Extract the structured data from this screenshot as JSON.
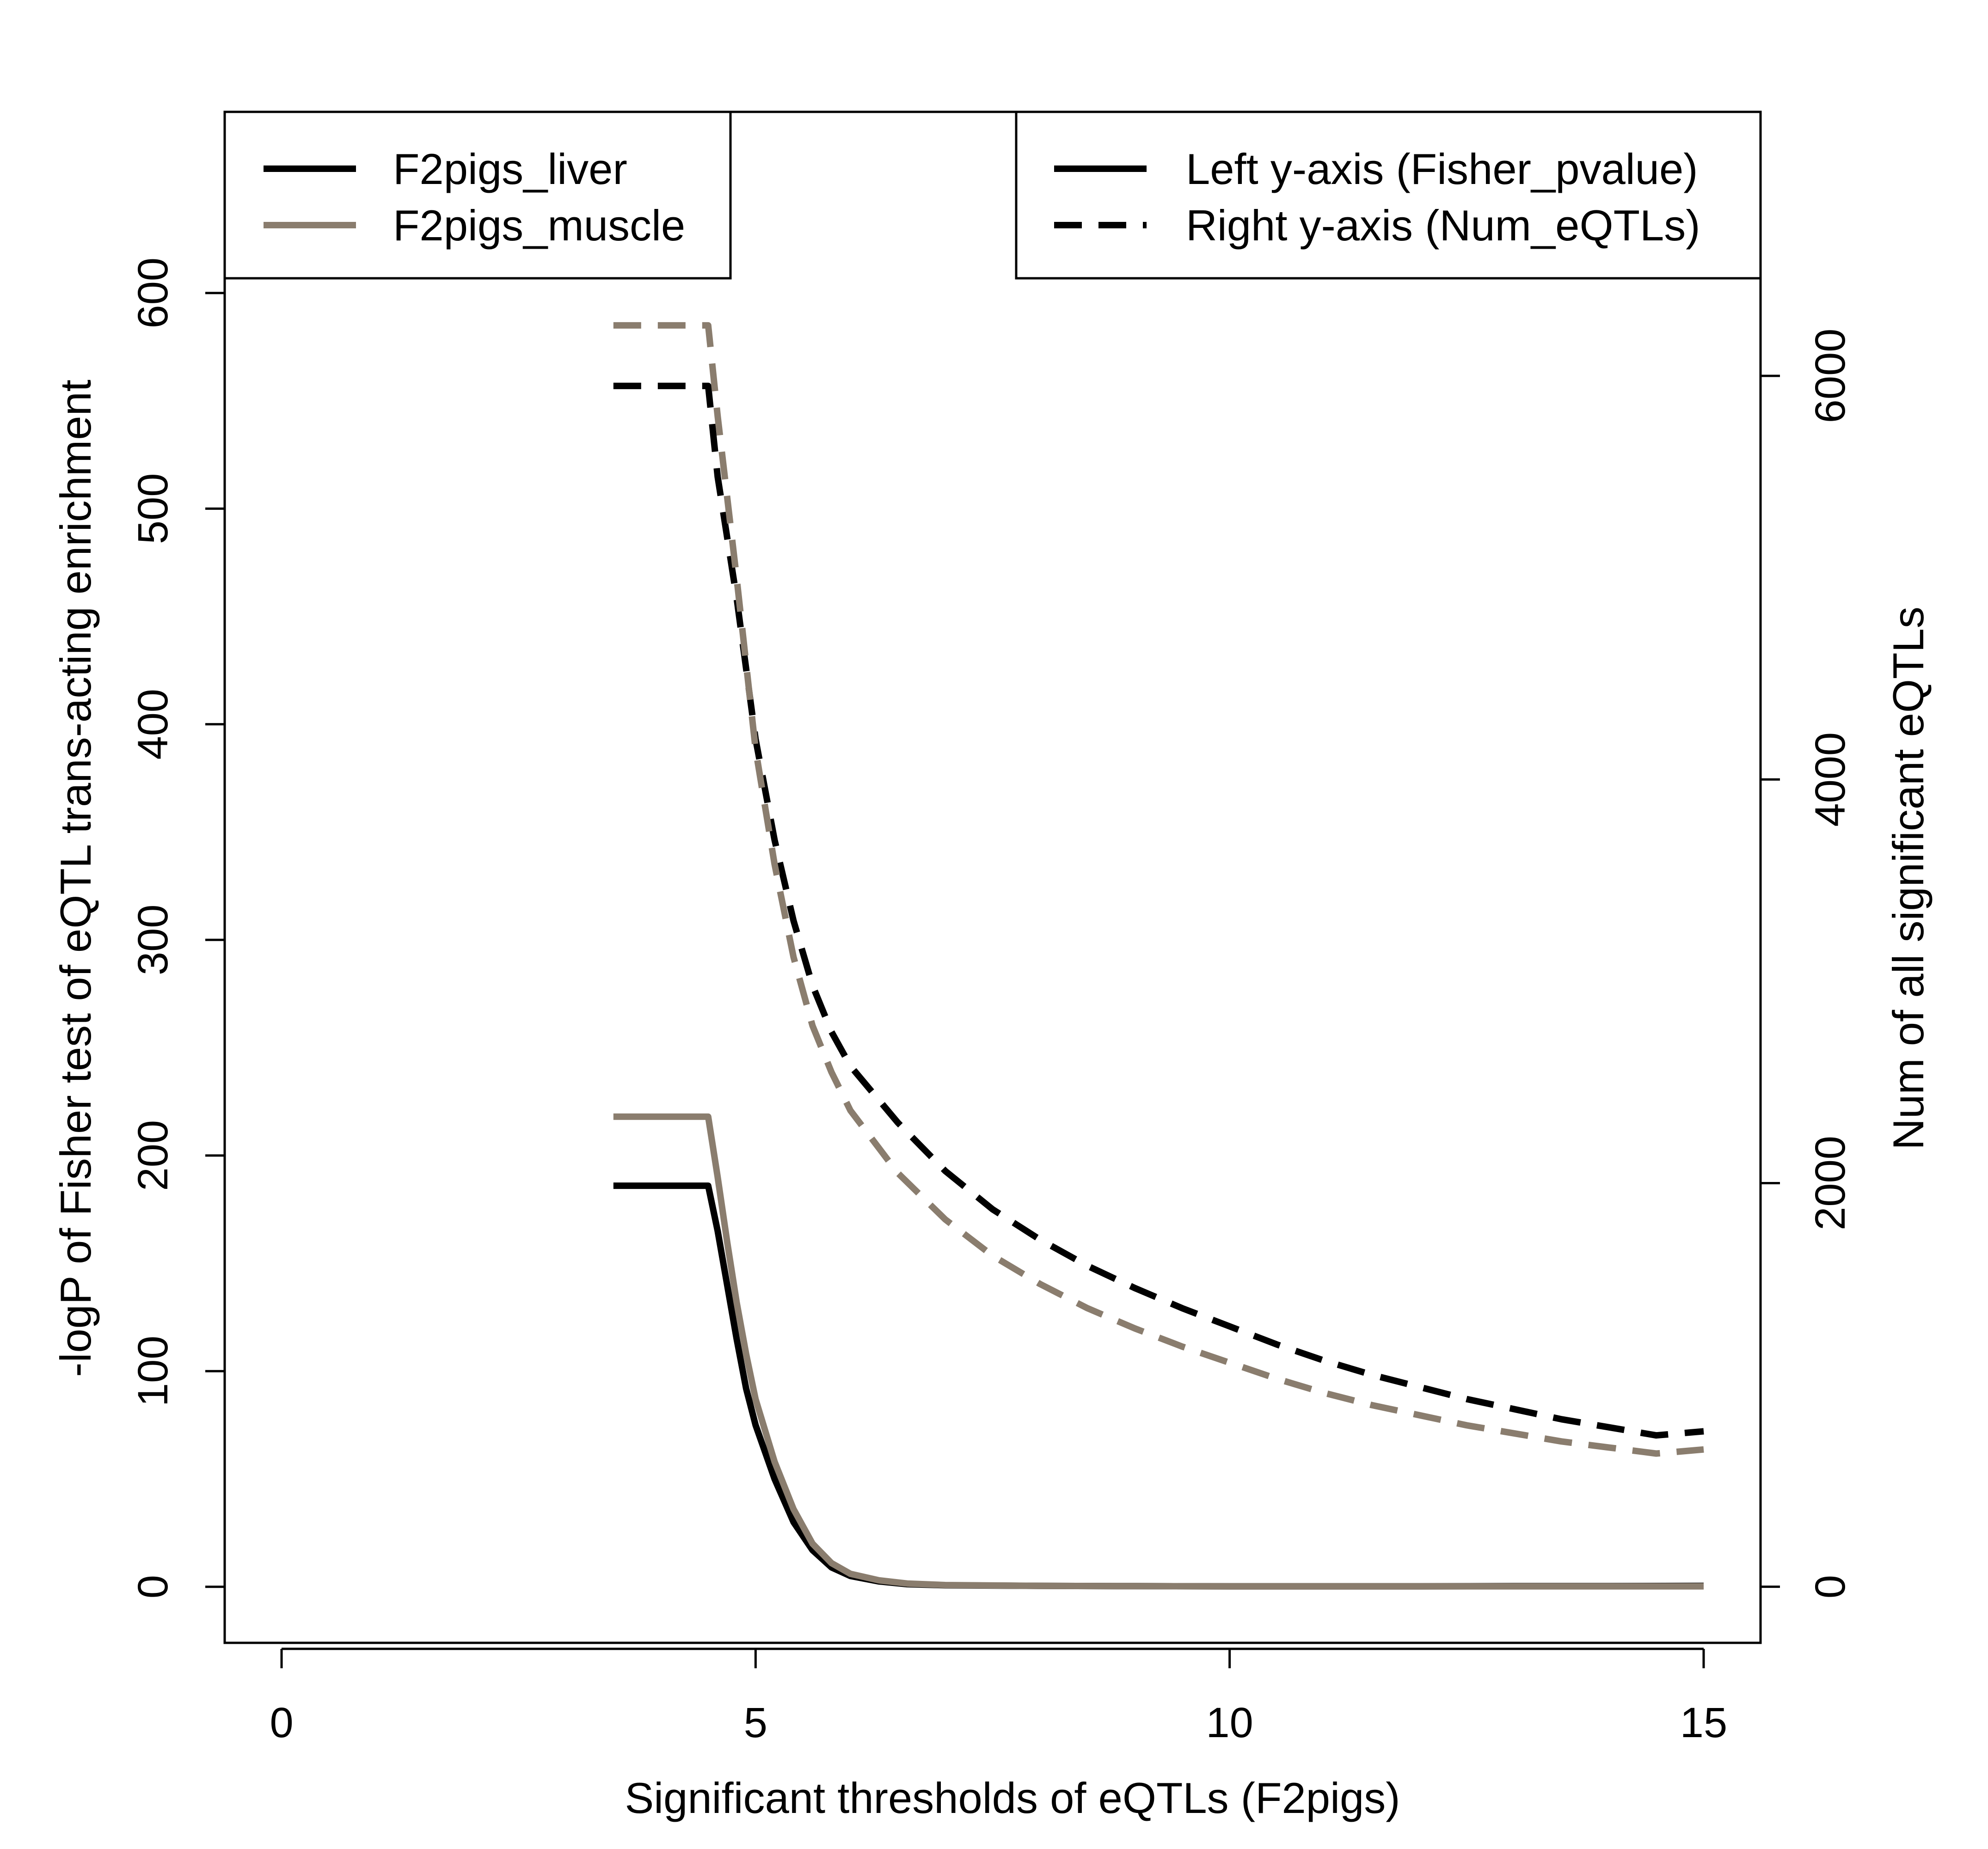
{
  "chart_data": {
    "type": "line",
    "xlabel": "Significant thresholds of eQTLs (F2pigs)",
    "ylabel_left": "-logP of Fisher test of eQTL trans-acting enrichment",
    "ylabel_right": "Num of all significant eQTLs",
    "xlim": [
      -0.6,
      15.6
    ],
    "ylim_left": [
      -26,
      684
    ],
    "ylim_right": [
      -278,
      7308
    ],
    "x_ticks": [
      "0",
      "5",
      "10",
      "15"
    ],
    "y_left_ticks": [
      "0",
      "100",
      "200",
      "300",
      "400",
      "500",
      "600"
    ],
    "y_right_ticks": [
      "0",
      "2000",
      "4000",
      "6000"
    ],
    "colors": {
      "F2pigs_liver": "#000000",
      "F2pigs_muscle": "#8a7d6e"
    },
    "legend_tissue": [
      {
        "label": "F2pigs_liver",
        "color": "#000000"
      },
      {
        "label": "F2pigs_muscle",
        "color": "#8a7d6e"
      }
    ],
    "legend_axis": [
      {
        "label": "Left y-axis (Fisher_pvalue)",
        "style": "solid"
      },
      {
        "label": "Right y-axis (Num_eQTLs)",
        "style": "dashed"
      }
    ],
    "series": [
      {
        "name": "F2pigs_liver",
        "axis": "left",
        "style": "solid",
        "color": "#000000",
        "x": [
          3.5,
          4.5,
          4.6,
          4.7,
          4.8,
          4.9,
          5.0,
          5.2,
          5.4,
          5.6,
          5.8,
          6.0,
          6.3,
          6.6,
          7.0,
          8.0,
          9.0,
          10.0,
          11.0,
          12.0,
          13.0,
          14.0,
          15.0
        ],
        "y": [
          186,
          186,
          165,
          140,
          115,
          92,
          75,
          50,
          30,
          17,
          9,
          5,
          2.5,
          1.2,
          0.7,
          0.4,
          0.3,
          0.2,
          0.2,
          0.2,
          0.3,
          0.3,
          0.4
        ]
      },
      {
        "name": "F2pigs_muscle",
        "axis": "left",
        "style": "solid",
        "color": "#8a7d6e",
        "x": [
          3.5,
          4.5,
          4.6,
          4.7,
          4.8,
          4.9,
          5.0,
          5.2,
          5.4,
          5.6,
          5.8,
          6.0,
          6.3,
          6.6,
          7.0,
          8.0,
          9.0,
          10.0,
          11.0,
          12.0,
          13.0,
          14.0,
          15.0
        ],
        "y": [
          218,
          218,
          190,
          160,
          132,
          108,
          87,
          58,
          36,
          20,
          11,
          6,
          3,
          1.5,
          0.8,
          0.4,
          0.3,
          0.2,
          0.2,
          0.2,
          0.2,
          0.2,
          0.2
        ]
      },
      {
        "name": "F2pigs_liver",
        "axis": "right",
        "style": "dashed",
        "color": "#000000",
        "x": [
          3.5,
          4.5,
          4.6,
          4.8,
          5.0,
          5.2,
          5.4,
          5.6,
          5.8,
          6.0,
          6.5,
          7.0,
          7.5,
          8.0,
          8.5,
          9.0,
          9.5,
          10.0,
          10.5,
          11.0,
          11.5,
          12.0,
          12.5,
          13.0,
          13.5,
          14.0,
          14.5,
          15.0
        ],
        "y": [
          5950,
          5950,
          5500,
          4900,
          4200,
          3700,
          3300,
          2980,
          2750,
          2580,
          2300,
          2060,
          1870,
          1720,
          1590,
          1480,
          1380,
          1290,
          1200,
          1120,
          1050,
          990,
          930,
          880,
          830,
          790,
          750,
          770
        ]
      },
      {
        "name": "F2pigs_muscle",
        "axis": "right",
        "style": "dashed",
        "color": "#8a7d6e",
        "x": [
          3.5,
          4.5,
          4.6,
          4.8,
          5.0,
          5.2,
          5.4,
          5.6,
          5.8,
          6.0,
          6.5,
          7.0,
          7.5,
          8.0,
          8.5,
          9.0,
          9.5,
          10.0,
          10.5,
          11.0,
          11.5,
          12.0,
          12.5,
          13.0,
          13.5,
          14.0,
          14.5,
          15.0
        ],
        "y": [
          6250,
          6250,
          5800,
          5000,
          4150,
          3580,
          3120,
          2780,
          2550,
          2360,
          2050,
          1820,
          1640,
          1500,
          1380,
          1280,
          1190,
          1110,
          1030,
          960,
          900,
          850,
          800,
          760,
          720,
          690,
          660,
          680
        ]
      }
    ]
  }
}
